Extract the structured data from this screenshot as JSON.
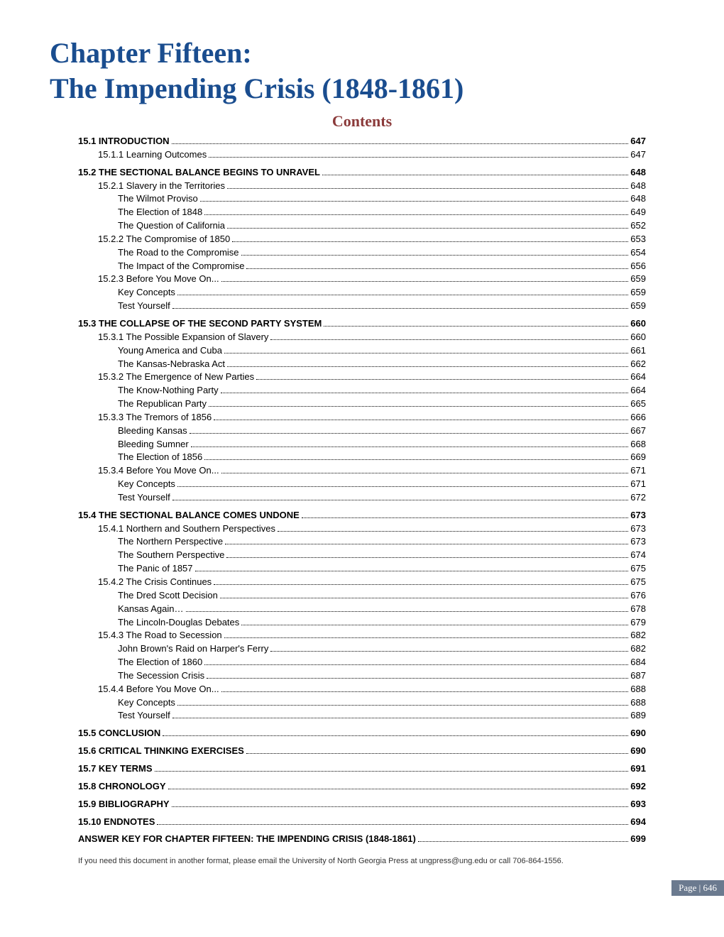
{
  "chapter_title_line1": "Chapter Fifteen:",
  "chapter_title_line2": "The Impending Crisis (1848-1861)",
  "contents_heading": "Contents",
  "colors": {
    "title_color": "#1a4d8f",
    "contents_color": "#8b3a3a",
    "text_color": "#000000",
    "badge_bg": "#6b7a8f",
    "badge_text": "#ffffff",
    "background": "#ffffff"
  },
  "typography": {
    "title_fontsize": 40,
    "contents_fontsize": 22,
    "toc_fontsize": 13,
    "footer_fontsize": 11
  },
  "toc": [
    {
      "level": 0,
      "label": "15.1 INTRODUCTION",
      "page": "647"
    },
    {
      "level": 1,
      "label": "15.1.1 Learning Outcomes",
      "page": "647"
    },
    {
      "level": 0,
      "label": "15.2 THE SECTIONAL BALANCE BEGINS TO UNRAVEL",
      "page": "648"
    },
    {
      "level": 1,
      "label": "15.2.1 Slavery in the Territories",
      "page": "648"
    },
    {
      "level": 2,
      "label": "The Wilmot Proviso",
      "page": "648"
    },
    {
      "level": 2,
      "label": "The Election of 1848",
      "page": "649"
    },
    {
      "level": 2,
      "label": "The Question of California",
      "page": "652"
    },
    {
      "level": 1,
      "label": "15.2.2 The Compromise of 1850",
      "page": "653"
    },
    {
      "level": 2,
      "label": "The Road to the Compromise",
      "page": "654"
    },
    {
      "level": 2,
      "label": "The Impact of the Compromise",
      "page": "656"
    },
    {
      "level": 1,
      "label": "15.2.3 Before You Move On...",
      "page": "659"
    },
    {
      "level": 2,
      "label": "Key Concepts",
      "page": "659"
    },
    {
      "level": 2,
      "label": "Test Yourself",
      "page": "659"
    },
    {
      "level": 0,
      "label": "15.3 THE COLLAPSE OF THE SECOND PARTY SYSTEM",
      "page": "660"
    },
    {
      "level": 1,
      "label": "15.3.1 The Possible Expansion of Slavery",
      "page": "660"
    },
    {
      "level": 2,
      "label": "Young America and Cuba",
      "page": "661"
    },
    {
      "level": 2,
      "label": "The Kansas-Nebraska Act",
      "page": "662"
    },
    {
      "level": 1,
      "label": "15.3.2 The Emergence of New Parties",
      "page": "664"
    },
    {
      "level": 2,
      "label": "The Know-Nothing Party",
      "page": "664"
    },
    {
      "level": 2,
      "label": "The Republican Party",
      "page": "665"
    },
    {
      "level": 1,
      "label": "15.3.3 The Tremors of 1856",
      "page": "666"
    },
    {
      "level": 2,
      "label": "Bleeding Kansas",
      "page": "667"
    },
    {
      "level": 2,
      "label": "Bleeding Sumner",
      "page": "668"
    },
    {
      "level": 2,
      "label": "The Election of 1856",
      "page": "669"
    },
    {
      "level": 1,
      "label": "15.3.4 Before You Move On...",
      "page": "671"
    },
    {
      "level": 2,
      "label": "Key Concepts",
      "page": "671"
    },
    {
      "level": 2,
      "label": "Test Yourself",
      "page": "672"
    },
    {
      "level": 0,
      "label": "15.4 THE SECTIONAL BALANCE COMES UNDONE",
      "page": "673"
    },
    {
      "level": 1,
      "label": "15.4.1 Northern and Southern Perspectives",
      "page": "673"
    },
    {
      "level": 2,
      "label": "The Northern Perspective",
      "page": "673"
    },
    {
      "level": 2,
      "label": "The Southern Perspective",
      "page": "674"
    },
    {
      "level": 2,
      "label": "The Panic of 1857",
      "page": "675"
    },
    {
      "level": 1,
      "label": "15.4.2 The Crisis Continues",
      "page": "675"
    },
    {
      "level": 2,
      "label": "The Dred Scott Decision",
      "page": "676"
    },
    {
      "level": 2,
      "label": "Kansas Again…",
      "page": "678"
    },
    {
      "level": 2,
      "label": "The Lincoln-Douglas Debates",
      "page": "679"
    },
    {
      "level": 1,
      "label": "15.4.3 The Road to Secession",
      "page": "682"
    },
    {
      "level": 2,
      "label": "John Brown's Raid on Harper's Ferry",
      "page": "682"
    },
    {
      "level": 2,
      "label": "The Election of 1860",
      "page": "684"
    },
    {
      "level": 2,
      "label": "The Secession Crisis",
      "page": "687"
    },
    {
      "level": 1,
      "label": "15.4.4 Before You Move On...",
      "page": "688"
    },
    {
      "level": 2,
      "label": "Key Concepts",
      "page": "688"
    },
    {
      "level": 2,
      "label": "Test Yourself",
      "page": "689"
    },
    {
      "level": 0,
      "label": "15.5 CONCLUSION",
      "page": "690"
    },
    {
      "level": 0,
      "label": "15.6 CRITICAL THINKING EXERCISES",
      "page": "690"
    },
    {
      "level": 0,
      "label": "15.7 KEY TERMS",
      "page": "691"
    },
    {
      "level": 0,
      "label": "15.8 CHRONOLOGY",
      "page": "692"
    },
    {
      "level": 0,
      "label": "15.9 BIBLIOGRAPHY",
      "page": "693"
    },
    {
      "level": 0,
      "label": "15.10 ENDNOTES",
      "page": "694"
    },
    {
      "level": 0,
      "label": "ANSWER KEY FOR CHAPTER FIFTEEN: THE IMPENDING CRISIS (1848-1861)",
      "page": "699"
    }
  ],
  "footer_note": "If you need this document in another format, please email the University of North Georgia Press at ungpress@ung.edu or call 706-864-1556.",
  "page_badge": "Page | 646"
}
